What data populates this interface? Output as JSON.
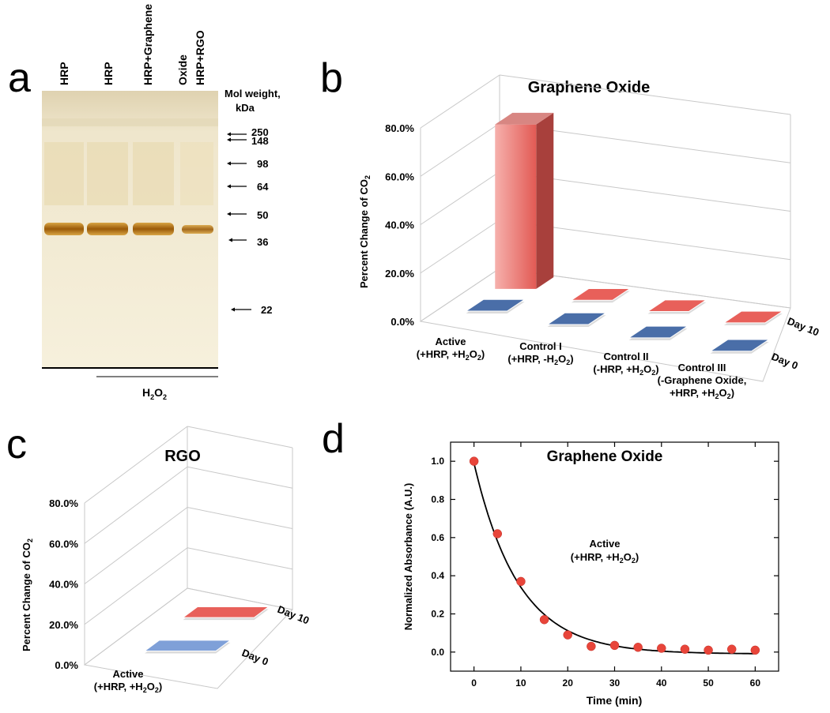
{
  "panels": {
    "a": "a",
    "b": "b",
    "c": "c",
    "d": "d"
  },
  "gel": {
    "lanes": [
      "HRP",
      "HRP",
      "HRP+Graphene Oxide",
      "HRP+RGO"
    ],
    "mw_header_line1": "Mol weight,",
    "mw_header_line2": "kDa",
    "markers": [
      "250",
      "148",
      "98",
      "64",
      "50",
      "36",
      "22"
    ],
    "h2o2_label": "H2O2"
  },
  "chart_data": [
    {
      "type": "bar",
      "title": "Graphene Oxide",
      "ylabel": "Percent Change of CO2",
      "yticks": [
        "0.0%",
        "20.0%",
        "40.0%",
        "60.0%",
        "80.0%"
      ],
      "ylim": [
        0,
        80
      ],
      "categories": [
        "Active (+HRP, +H2O2)",
        "Control I (+HRP, -H2O2)",
        "Control II (-HRP, +H2O2)",
        "Control III (-Graphene Oxide, +HRP, +H2O2)"
      ],
      "series": [
        {
          "name": "Day 0",
          "values": [
            0,
            0,
            0,
            0
          ],
          "color": "#4a6ea8"
        },
        {
          "name": "Day 10",
          "values": [
            68,
            0,
            0,
            0
          ],
          "color": "#e8605a"
        }
      ]
    },
    {
      "type": "bar",
      "title": "RGO",
      "ylabel": "Percent Change of CO2",
      "yticks": [
        "0.0%",
        "20.0%",
        "40.0%",
        "60.0%",
        "80.0%"
      ],
      "ylim": [
        0,
        80
      ],
      "categories": [
        "Active (+HRP, +H2O2)"
      ],
      "series": [
        {
          "name": "Day 0",
          "values": [
            0
          ],
          "color": "#7fa0d8"
        },
        {
          "name": "Day 10",
          "values": [
            0
          ],
          "color": "#e8605a"
        }
      ]
    },
    {
      "type": "scatter",
      "title": "Graphene Oxide",
      "annotation": "Active (+HRP, +H2O2)",
      "xlabel": "Time (min)",
      "ylabel": "Normalized Absorbance (A.U.)",
      "xticks": [
        "0",
        "10",
        "20",
        "30",
        "40",
        "50",
        "60"
      ],
      "yticks": [
        "0.0",
        "0.2",
        "0.4",
        "0.6",
        "0.8",
        "1.0"
      ],
      "xlim": [
        -5,
        65
      ],
      "ylim": [
        -0.1,
        1.1
      ],
      "x": [
        0,
        5,
        10,
        15,
        20,
        25,
        30,
        35,
        40,
        45,
        50,
        55,
        60
      ],
      "y": [
        1.0,
        0.62,
        0.37,
        0.17,
        0.09,
        0.03,
        0.035,
        0.025,
        0.02,
        0.015,
        0.01,
        0.015,
        0.01
      ],
      "fit": {
        "type": "exponential",
        "a": 1.0,
        "k": 0.105,
        "c": -0.01
      }
    }
  ]
}
